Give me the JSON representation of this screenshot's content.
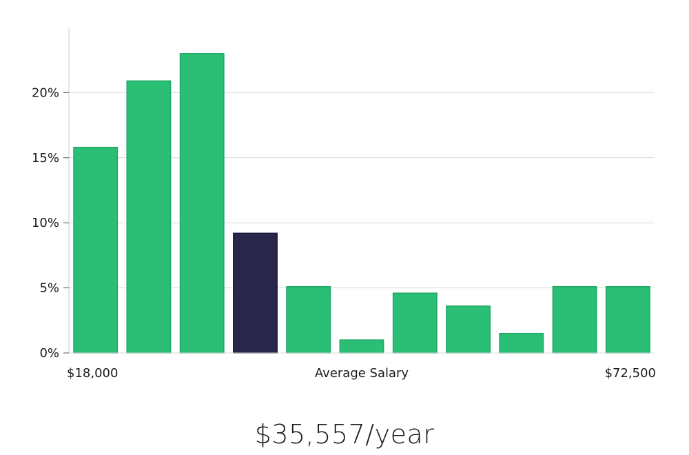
{
  "chart_data": {
    "type": "bar",
    "categories": [
      "1",
      "2",
      "3",
      "4",
      "5",
      "6",
      "7",
      "8",
      "9",
      "10",
      "11"
    ],
    "values": [
      15.8,
      20.9,
      23.0,
      9.2,
      5.1,
      1.0,
      4.6,
      3.6,
      1.5,
      5.1,
      5.1
    ],
    "highlight_index": 3,
    "ylim": [
      0,
      25
    ],
    "yticks": [
      0,
      5,
      10,
      15,
      20
    ],
    "ytick_labels": [
      "0%",
      "5%",
      "10%",
      "15%",
      "20%"
    ],
    "xlabel": "Average Salary",
    "x_min_label": "$18,000",
    "x_max_label": "$72,500",
    "grid": true,
    "colors": {
      "bar": "#2bbf76",
      "bar_border": "#20a865",
      "highlight": "#28264a",
      "highlight_border": "#1a1836",
      "grid": "#d9d9d9",
      "axis": "#cccccc"
    }
  },
  "summary": {
    "salary": "$35,557/year"
  }
}
